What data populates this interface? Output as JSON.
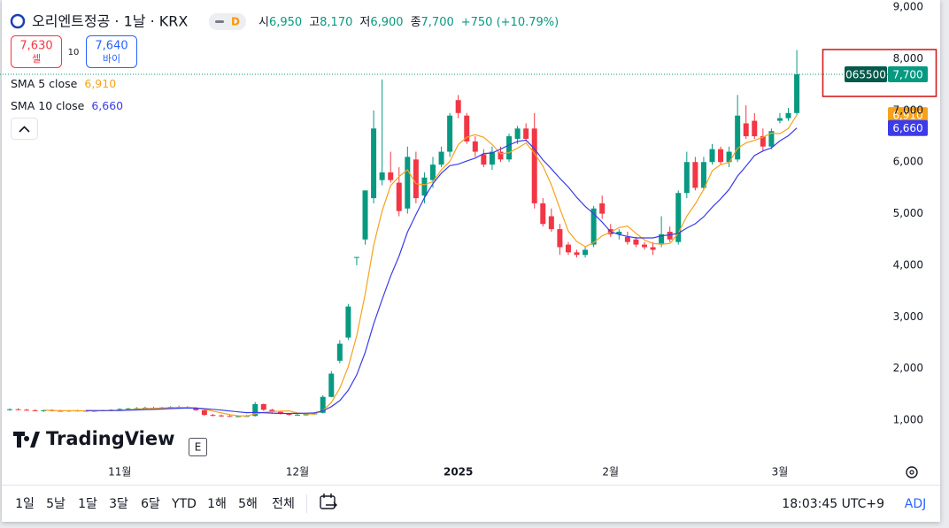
{
  "chart_data": {
    "type": "candlestick",
    "title": "오리엔트정공 · 1날 · KRX",
    "interval_badge": "D",
    "stats": [
      {
        "label": "시",
        "value": "6,950"
      },
      {
        "label": "고",
        "value": "8,170"
      },
      {
        "label": "저",
        "value": "6,900"
      },
      {
        "label": "종",
        "value": "7,700"
      }
    ],
    "change": "+750 (+10.79%)",
    "up_color": "#089981",
    "down_color": "#f23645",
    "categories": [
      null,
      null,
      null,
      null,
      null,
      null,
      null,
      null,
      null,
      null,
      null,
      null,
      null,
      "11월",
      null,
      null,
      null,
      null,
      null,
      null,
      null,
      null,
      null,
      null,
      null,
      null,
      null,
      null,
      null,
      null,
      null,
      null,
      null,
      null,
      "12월",
      null,
      null,
      null,
      null,
      null,
      null,
      null,
      null,
      null,
      null,
      null,
      null,
      null,
      null,
      null,
      null,
      null,
      null,
      "2025",
      null,
      null,
      null,
      null,
      null,
      null,
      null,
      null,
      null,
      null,
      null,
      null,
      null,
      null,
      null,
      null,
      null,
      "2월",
      null,
      null,
      null,
      null,
      null,
      null,
      null,
      null,
      null,
      null,
      null,
      null,
      null,
      null,
      null,
      null,
      null,
      null,
      null,
      "3월",
      null,
      null
    ],
    "open": [
      1200,
      1210,
      1200,
      1190,
      1180,
      1190,
      1180,
      1175,
      1185,
      1180,
      1175,
      1180,
      1190,
      1200,
      1215,
      1225,
      1230,
      1240,
      1235,
      1245,
      1255,
      1250,
      1240,
      1190,
      1100,
      1090,
      1080,
      1070,
      1075,
      1080,
      1310,
      1200,
      1160,
      1120,
      1100,
      1105,
      1110,
      1140,
      1450,
      2150,
      2600,
      4150,
      4500,
      5300,
      5650,
      5800,
      5600,
      5100,
      6050,
      5350,
      5650,
      5950,
      6200,
      7200,
      6900,
      6400,
      6150,
      5950,
      6200,
      6050,
      6450,
      6650,
      6650,
      5200,
      4950,
      4700,
      4400,
      4250,
      4200,
      4400,
      5200,
      4700,
      4600,
      4550,
      4500,
      4400,
      4350,
      4400,
      4650,
      4450,
      5400,
      6000,
      5500,
      6000,
      6250,
      6000,
      6050,
      6750,
      6800,
      6500,
      6300,
      6800,
      6850,
      6950
    ],
    "high": [
      1230,
      1230,
      1220,
      1210,
      1200,
      1210,
      1200,
      1195,
      1200,
      1195,
      1190,
      1200,
      1210,
      1230,
      1240,
      1250,
      1260,
      1260,
      1255,
      1270,
      1280,
      1270,
      1250,
      1200,
      1120,
      1110,
      1100,
      1090,
      1100,
      1350,
      1320,
      1220,
      1170,
      1130,
      1120,
      1130,
      1150,
      1480,
      1950,
      2550,
      3250,
      4160,
      5450,
      7000,
      7600,
      6200,
      5900,
      6300,
      6200,
      5800,
      6100,
      6300,
      6950,
      7300,
      6950,
      6500,
      6250,
      6300,
      6300,
      6550,
      6700,
      6750,
      6950,
      5300,
      5100,
      4800,
      4450,
      4300,
      4350,
      5150,
      5350,
      4800,
      4700,
      4650,
      4550,
      4450,
      4450,
      4950,
      4750,
      5450,
      6200,
      6100,
      6100,
      6350,
      6300,
      6300,
      7300,
      7100,
      6950,
      6650,
      6650,
      6950,
      7050,
      8170
    ],
    "low": [
      1180,
      1190,
      1180,
      1170,
      1160,
      1170,
      1165,
      1160,
      1170,
      1165,
      1160,
      1170,
      1175,
      1190,
      1200,
      1210,
      1215,
      1220,
      1220,
      1230,
      1240,
      1230,
      1180,
      1080,
      1070,
      1060,
      1060,
      1055,
      1060,
      1070,
      1180,
      1140,
      1110,
      1090,
      1085,
      1090,
      1100,
      1130,
      1440,
      2100,
      2550,
      4000,
      4400,
      5200,
      5550,
      5600,
      4950,
      5000,
      5200,
      5200,
      5500,
      5900,
      6100,
      6850,
      6350,
      6100,
      5900,
      5850,
      6000,
      6000,
      6350,
      6400,
      5100,
      4750,
      4650,
      4200,
      4200,
      4150,
      4150,
      4350,
      4900,
      4550,
      4500,
      4400,
      4350,
      4300,
      4200,
      4350,
      4450,
      4400,
      5300,
      5450,
      5450,
      5950,
      5950,
      5900,
      6000,
      6450,
      6450,
      6200,
      6250,
      6750,
      6800,
      6900
    ],
    "close": [
      1210,
      1200,
      1190,
      1180,
      1190,
      1180,
      1175,
      1185,
      1180,
      1175,
      1180,
      1190,
      1200,
      1215,
      1225,
      1230,
      1240,
      1235,
      1245,
      1255,
      1250,
      1240,
      1190,
      1100,
      1090,
      1080,
      1070,
      1075,
      1080,
      1310,
      1200,
      1160,
      1120,
      1100,
      1105,
      1110,
      1140,
      1450,
      1900,
      2480,
      3200,
      4160,
      5450,
      6650,
      5800,
      5650,
      5050,
      6100,
      5300,
      5700,
      5950,
      6200,
      6900,
      6950,
      6400,
      6200,
      5950,
      6200,
      6050,
      6500,
      6650,
      6450,
      5200,
      4800,
      4700,
      4350,
      4250,
      4200,
      4300,
      5100,
      5000,
      4600,
      4650,
      4450,
      4400,
      4350,
      4300,
      4600,
      4500,
      5400,
      6000,
      5500,
      6000,
      6250,
      6000,
      6200,
      6900,
      6500,
      6500,
      6300,
      6600,
      6850,
      6950,
      7700
    ],
    "indicators": [
      {
        "name": "SMA 5 close",
        "color": "#f7a21b",
        "last_label": "6,910",
        "values": [
          null,
          null,
          null,
          null,
          1194,
          1188,
          1183,
          1182,
          1182,
          1179,
          1179,
          1182,
          1185,
          1192,
          1202,
          1212,
          1222,
          1229,
          1235,
          1241,
          1245,
          1245,
          1236,
          1207,
          1174,
          1140,
          1106,
          1083,
          1079,
          1123,
          1147,
          1165,
          1174,
          1178,
          1137,
          1119,
          1115,
          1181,
          1341,
          1616,
          2034,
          2638,
          3438,
          4388,
          5052,
          5542,
          5720,
          5850,
          5580,
          5560,
          5620,
          5850,
          6010,
          6340,
          6480,
          6530,
          6480,
          6340,
          6160,
          6180,
          6270,
          6370,
          6170,
          5920,
          5560,
          5100,
          4660,
          4460,
          4360,
          4440,
          4570,
          4640,
          4730,
          4760,
          4620,
          4490,
          4420,
          4410,
          4420,
          4620,
          4950,
          5190,
          5470,
          5830,
          5950,
          5990,
          6270,
          6370,
          6420,
          6480,
          6560,
          6550,
          6650,
          6910
        ]
      },
      {
        "name": "SMA 10 close",
        "color": "#3b3bea",
        "last_label": "6,660",
        "values": [
          null,
          null,
          null,
          null,
          null,
          null,
          null,
          null,
          null,
          1187,
          1184,
          1183,
          1184,
          1187,
          1191,
          1196,
          1202,
          1207,
          1214,
          1222,
          1229,
          1234,
          1233,
          1221,
          1208,
          1193,
          1176,
          1160,
          1143,
          1149,
          1144,
          1136,
          1129,
          1129,
          1130,
          1133,
          1140,
          1178,
          1260,
          1377,
          1577,
          1877,
          2310,
          2865,
          3334,
          3788,
          4179,
          4644,
          4984,
          5306,
          5581,
          5785,
          5930,
          5960,
          6020,
          6075,
          6165,
          6175,
          6250,
          6330,
          6400,
          6425,
          6255,
          6040,
          5870,
          5685,
          5515,
          5315,
          5140,
          5000,
          4835,
          4650,
          4595,
          4560,
          4530,
          4530,
          4530,
          4570,
          4590,
          4620,
          4720,
          4805,
          4940,
          5125,
          5285,
          5470,
          5730,
          5920,
          6125,
          6215,
          6275,
          6410,
          6510,
          6660
        ]
      }
    ],
    "price_badge": {
      "symbol": "065500",
      "label": "7,700"
    },
    "ylim": [
      280,
      9140
    ],
    "yticks": [
      {
        "value": 1000,
        "label": "1,000"
      },
      {
        "value": 2000,
        "label": "2,000"
      },
      {
        "value": 3000,
        "label": "3,000"
      },
      {
        "value": 4000,
        "label": "4,000"
      },
      {
        "value": 5000,
        "label": "5,000"
      },
      {
        "value": 6000,
        "label": "6,000"
      },
      {
        "value": 7000,
        "label": "7,000"
      },
      {
        "value": 8000,
        "label": "8,000"
      },
      {
        "value": 9000,
        "label": "9,000"
      }
    ],
    "grid": false,
    "logo": "TradingView",
    "event_marker": "E"
  },
  "trade": {
    "sell_price": "7,630",
    "sell_label": "셀",
    "spread": "10",
    "buy_price": "7,640",
    "buy_label": "바이"
  },
  "toolbar": {
    "ranges": [
      "1일",
      "5날",
      "1달",
      "3달",
      "6달",
      "YTD",
      "1해",
      "5해",
      "전체"
    ],
    "time": "18:03:45 UTC+9",
    "adj": "ADJ"
  }
}
